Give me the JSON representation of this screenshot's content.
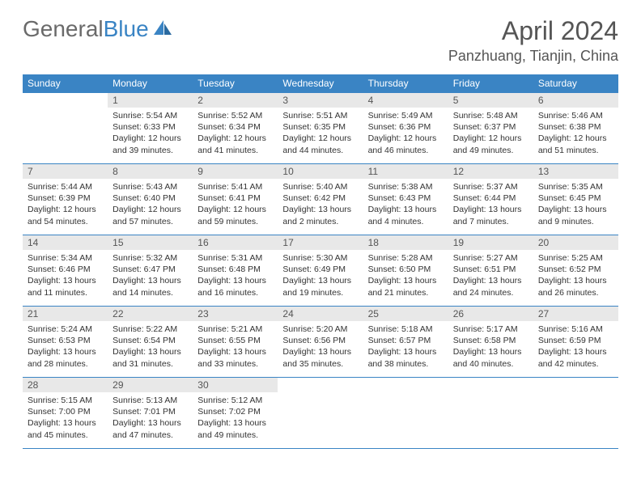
{
  "logo": {
    "part1": "General",
    "part2": "Blue"
  },
  "title": "April 2024",
  "location": "Panzhuang, Tianjin, China",
  "headers": [
    "Sunday",
    "Monday",
    "Tuesday",
    "Wednesday",
    "Thursday",
    "Friday",
    "Saturday"
  ],
  "colors": {
    "header_bg": "#3a84c4",
    "header_fg": "#ffffff",
    "daynum_bg": "#e8e8e8",
    "border": "#3a84c4",
    "logo_gray": "#6a6a6a",
    "logo_blue": "#3a84c4"
  },
  "weeks": [
    [
      null,
      {
        "n": "1",
        "sr": "5:54 AM",
        "ss": "6:33 PM",
        "dl": "12 hours and 39 minutes."
      },
      {
        "n": "2",
        "sr": "5:52 AM",
        "ss": "6:34 PM",
        "dl": "12 hours and 41 minutes."
      },
      {
        "n": "3",
        "sr": "5:51 AM",
        "ss": "6:35 PM",
        "dl": "12 hours and 44 minutes."
      },
      {
        "n": "4",
        "sr": "5:49 AM",
        "ss": "6:36 PM",
        "dl": "12 hours and 46 minutes."
      },
      {
        "n": "5",
        "sr": "5:48 AM",
        "ss": "6:37 PM",
        "dl": "12 hours and 49 minutes."
      },
      {
        "n": "6",
        "sr": "5:46 AM",
        "ss": "6:38 PM",
        "dl": "12 hours and 51 minutes."
      }
    ],
    [
      {
        "n": "7",
        "sr": "5:44 AM",
        "ss": "6:39 PM",
        "dl": "12 hours and 54 minutes."
      },
      {
        "n": "8",
        "sr": "5:43 AM",
        "ss": "6:40 PM",
        "dl": "12 hours and 57 minutes."
      },
      {
        "n": "9",
        "sr": "5:41 AM",
        "ss": "6:41 PM",
        "dl": "12 hours and 59 minutes."
      },
      {
        "n": "10",
        "sr": "5:40 AM",
        "ss": "6:42 PM",
        "dl": "13 hours and 2 minutes."
      },
      {
        "n": "11",
        "sr": "5:38 AM",
        "ss": "6:43 PM",
        "dl": "13 hours and 4 minutes."
      },
      {
        "n": "12",
        "sr": "5:37 AM",
        "ss": "6:44 PM",
        "dl": "13 hours and 7 minutes."
      },
      {
        "n": "13",
        "sr": "5:35 AM",
        "ss": "6:45 PM",
        "dl": "13 hours and 9 minutes."
      }
    ],
    [
      {
        "n": "14",
        "sr": "5:34 AM",
        "ss": "6:46 PM",
        "dl": "13 hours and 11 minutes."
      },
      {
        "n": "15",
        "sr": "5:32 AM",
        "ss": "6:47 PM",
        "dl": "13 hours and 14 minutes."
      },
      {
        "n": "16",
        "sr": "5:31 AM",
        "ss": "6:48 PM",
        "dl": "13 hours and 16 minutes."
      },
      {
        "n": "17",
        "sr": "5:30 AM",
        "ss": "6:49 PM",
        "dl": "13 hours and 19 minutes."
      },
      {
        "n": "18",
        "sr": "5:28 AM",
        "ss": "6:50 PM",
        "dl": "13 hours and 21 minutes."
      },
      {
        "n": "19",
        "sr": "5:27 AM",
        "ss": "6:51 PM",
        "dl": "13 hours and 24 minutes."
      },
      {
        "n": "20",
        "sr": "5:25 AM",
        "ss": "6:52 PM",
        "dl": "13 hours and 26 minutes."
      }
    ],
    [
      {
        "n": "21",
        "sr": "5:24 AM",
        "ss": "6:53 PM",
        "dl": "13 hours and 28 minutes."
      },
      {
        "n": "22",
        "sr": "5:22 AM",
        "ss": "6:54 PM",
        "dl": "13 hours and 31 minutes."
      },
      {
        "n": "23",
        "sr": "5:21 AM",
        "ss": "6:55 PM",
        "dl": "13 hours and 33 minutes."
      },
      {
        "n": "24",
        "sr": "5:20 AM",
        "ss": "6:56 PM",
        "dl": "13 hours and 35 minutes."
      },
      {
        "n": "25",
        "sr": "5:18 AM",
        "ss": "6:57 PM",
        "dl": "13 hours and 38 minutes."
      },
      {
        "n": "26",
        "sr": "5:17 AM",
        "ss": "6:58 PM",
        "dl": "13 hours and 40 minutes."
      },
      {
        "n": "27",
        "sr": "5:16 AM",
        "ss": "6:59 PM",
        "dl": "13 hours and 42 minutes."
      }
    ],
    [
      {
        "n": "28",
        "sr": "5:15 AM",
        "ss": "7:00 PM",
        "dl": "13 hours and 45 minutes."
      },
      {
        "n": "29",
        "sr": "5:13 AM",
        "ss": "7:01 PM",
        "dl": "13 hours and 47 minutes."
      },
      {
        "n": "30",
        "sr": "5:12 AM",
        "ss": "7:02 PM",
        "dl": "13 hours and 49 minutes."
      },
      null,
      null,
      null,
      null
    ]
  ],
  "labels": {
    "sunrise": "Sunrise:",
    "sunset": "Sunset:",
    "daylight": "Daylight:"
  }
}
